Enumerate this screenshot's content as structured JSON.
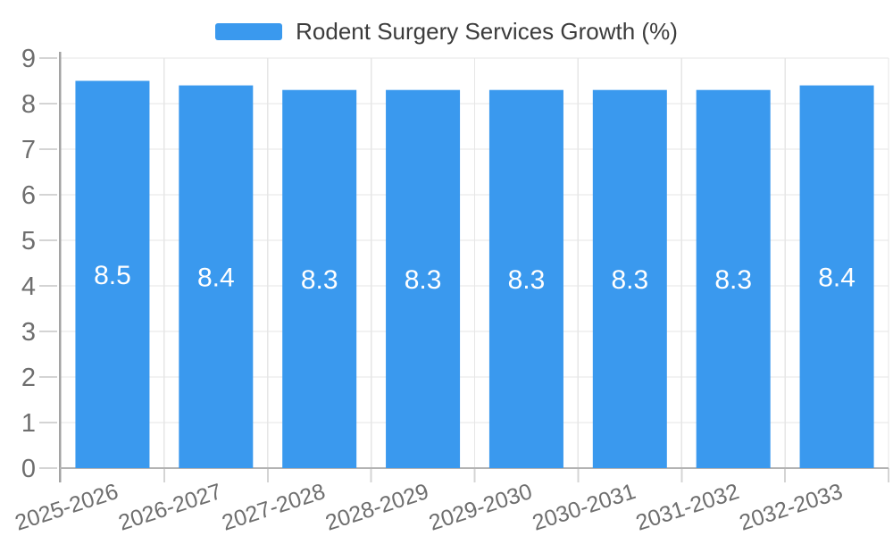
{
  "chart_data": {
    "type": "bar",
    "series_name": "Rodent Surgery Services Growth (%)",
    "categories": [
      "2025-2026",
      "2026-2027",
      "2027-2028",
      "2028-2029",
      "2029-2030",
      "2030-2031",
      "2031-2032",
      "2032-2033"
    ],
    "values": [
      8.5,
      8.4,
      8.3,
      8.3,
      8.3,
      8.3,
      8.3,
      8.4
    ],
    "value_labels": [
      "8.5",
      "8.4",
      "8.3",
      "8.3",
      "8.3",
      "8.3",
      "8.3",
      "8.4"
    ],
    "title": "",
    "xlabel": "",
    "ylabel": "",
    "ylim": [
      0,
      9
    ],
    "ytick_step": 1,
    "ytick_labels": [
      "0",
      "1",
      "2",
      "3",
      "4",
      "5",
      "6",
      "7",
      "8",
      "9"
    ],
    "grid": true,
    "legend_position": "top-center",
    "x_label_rotation_deg": -18,
    "colors": {
      "bar": "#3a99ee",
      "bar_value_label": "#ffffff",
      "axis_text": "#6e6e6e",
      "legend_text": "#3c3c3c",
      "gridline": "#e6e6e6",
      "axis_line_left": "#a3a3a3",
      "axis_line_bottom": "#b3b3b3",
      "tick_mark": "#d4d4d4",
      "background": "#ffffff"
    }
  }
}
